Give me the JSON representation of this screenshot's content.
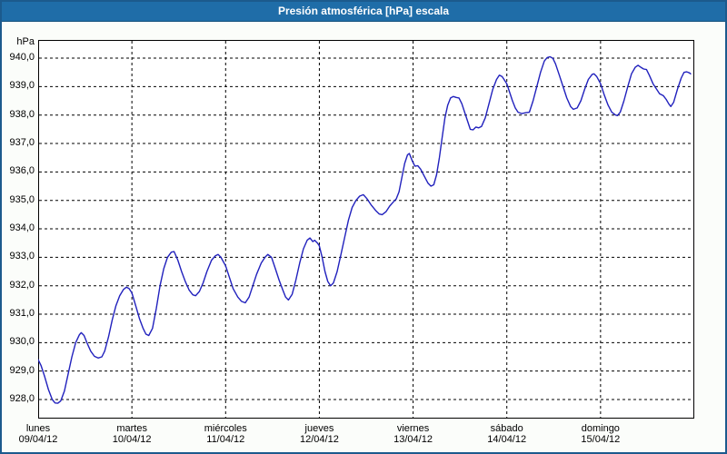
{
  "title": "Presión atmosférica [hPa] escala",
  "colors": {
    "titlebar": "#1f6da8",
    "frame": "#1c5a8d",
    "content_bg": "#fbfdfa",
    "plot_bg": "#ffffff",
    "plot_border": "#000000",
    "grid": "#000000",
    "line": "#2121bd",
    "title_text": "#ffffff",
    "label_text": "#000000"
  },
  "chart_data": {
    "type": "line",
    "title": "Presión atmosférica [hPa] escala",
    "ylabel": "hPa",
    "xlabel": "",
    "grid": "dashed",
    "legend": "none",
    "y_ticks": [
      940,
      939,
      938,
      937,
      936,
      935,
      934,
      933,
      932,
      931,
      930,
      929,
      928
    ],
    "y_tick_labels": [
      "940,0",
      "939,0",
      "938,0",
      "937,0",
      "936,0",
      "935,0",
      "934,0",
      "933,0",
      "932,0",
      "931,0",
      "930,0",
      "929,0",
      "928,0"
    ],
    "ylim": [
      927.33,
      940.64
    ],
    "xlim_days": [
      0,
      7
    ],
    "x_categories": [
      {
        "day": "lunes",
        "date": "09/04/12"
      },
      {
        "day": "martes",
        "date": "10/04/12"
      },
      {
        "day": "miércoles",
        "date": "11/04/12"
      },
      {
        "day": "jueves",
        "date": "12/04/12"
      },
      {
        "day": "viernes",
        "date": "13/04/12"
      },
      {
        "day": "sábado",
        "date": "14/04/12"
      },
      {
        "day": "domingo",
        "date": "15/04/12"
      }
    ],
    "series": [
      {
        "name": "Presión atmosférica [hPa]",
        "color": "#2121bd",
        "points": [
          [
            0.0,
            929.4
          ],
          [
            0.03,
            929.2
          ],
          [
            0.07,
            928.8
          ],
          [
            0.11,
            928.35
          ],
          [
            0.15,
            928.0
          ],
          [
            0.18,
            927.88
          ],
          [
            0.21,
            927.87
          ],
          [
            0.24,
            927.95
          ],
          [
            0.28,
            928.3
          ],
          [
            0.32,
            928.9
          ],
          [
            0.36,
            929.5
          ],
          [
            0.4,
            930.0
          ],
          [
            0.44,
            930.28
          ],
          [
            0.46,
            930.35
          ],
          [
            0.49,
            930.25
          ],
          [
            0.52,
            930.0
          ],
          [
            0.56,
            929.7
          ],
          [
            0.6,
            929.52
          ],
          [
            0.64,
            929.46
          ],
          [
            0.68,
            929.5
          ],
          [
            0.71,
            929.7
          ],
          [
            0.75,
            930.2
          ],
          [
            0.79,
            930.8
          ],
          [
            0.83,
            931.3
          ],
          [
            0.87,
            931.65
          ],
          [
            0.91,
            931.87
          ],
          [
            0.94,
            931.95
          ],
          [
            0.97,
            931.9
          ],
          [
            1.0,
            931.75
          ],
          [
            1.04,
            931.3
          ],
          [
            1.08,
            930.85
          ],
          [
            1.12,
            930.5
          ],
          [
            1.15,
            930.3
          ],
          [
            1.18,
            930.25
          ],
          [
            1.22,
            930.5
          ],
          [
            1.26,
            931.2
          ],
          [
            1.3,
            932.0
          ],
          [
            1.34,
            932.6
          ],
          [
            1.38,
            933.0
          ],
          [
            1.42,
            933.18
          ],
          [
            1.45,
            933.2
          ],
          [
            1.49,
            932.9
          ],
          [
            1.53,
            932.5
          ],
          [
            1.57,
            932.15
          ],
          [
            1.61,
            931.85
          ],
          [
            1.65,
            931.68
          ],
          [
            1.68,
            931.65
          ],
          [
            1.72,
            931.8
          ],
          [
            1.76,
            932.1
          ],
          [
            1.8,
            932.5
          ],
          [
            1.85,
            932.9
          ],
          [
            1.89,
            933.05
          ],
          [
            1.92,
            933.1
          ],
          [
            1.95,
            933.0
          ],
          [
            2.0,
            932.7
          ],
          [
            2.04,
            932.3
          ],
          [
            2.08,
            931.9
          ],
          [
            2.13,
            931.6
          ],
          [
            2.17,
            931.45
          ],
          [
            2.21,
            931.4
          ],
          [
            2.25,
            931.6
          ],
          [
            2.29,
            932.0
          ],
          [
            2.33,
            932.4
          ],
          [
            2.38,
            932.8
          ],
          [
            2.42,
            933.0
          ],
          [
            2.45,
            933.1
          ],
          [
            2.49,
            933.0
          ],
          [
            2.53,
            932.6
          ],
          [
            2.57,
            932.2
          ],
          [
            2.61,
            931.85
          ],
          [
            2.64,
            931.6
          ],
          [
            2.67,
            931.5
          ],
          [
            2.71,
            931.7
          ],
          [
            2.75,
            932.2
          ],
          [
            2.79,
            932.8
          ],
          [
            2.83,
            933.3
          ],
          [
            2.87,
            933.6
          ],
          [
            2.9,
            933.68
          ],
          [
            2.93,
            933.55
          ],
          [
            2.95,
            933.6
          ],
          [
            2.98,
            933.5
          ],
          [
            3.0,
            933.4
          ],
          [
            3.03,
            933.0
          ],
          [
            3.06,
            932.5
          ],
          [
            3.09,
            932.15
          ],
          [
            3.12,
            932.0
          ],
          [
            3.15,
            932.1
          ],
          [
            3.19,
            932.5
          ],
          [
            3.23,
            933.1
          ],
          [
            3.27,
            933.7
          ],
          [
            3.31,
            934.3
          ],
          [
            3.35,
            934.75
          ],
          [
            3.39,
            935.0
          ],
          [
            3.43,
            935.15
          ],
          [
            3.47,
            935.2
          ],
          [
            3.51,
            935.05
          ],
          [
            3.55,
            934.85
          ],
          [
            3.6,
            934.65
          ],
          [
            3.64,
            934.52
          ],
          [
            3.67,
            934.5
          ],
          [
            3.71,
            934.6
          ],
          [
            3.75,
            934.8
          ],
          [
            3.79,
            934.95
          ],
          [
            3.82,
            935.05
          ],
          [
            3.85,
            935.3
          ],
          [
            3.88,
            935.8
          ],
          [
            3.91,
            936.3
          ],
          [
            3.94,
            936.6
          ],
          [
            3.96,
            936.65
          ],
          [
            3.99,
            936.4
          ],
          [
            4.02,
            936.2
          ],
          [
            4.05,
            936.22
          ],
          [
            4.08,
            936.1
          ],
          [
            4.12,
            935.85
          ],
          [
            4.16,
            935.6
          ],
          [
            4.19,
            935.5
          ],
          [
            4.22,
            935.55
          ],
          [
            4.25,
            935.9
          ],
          [
            4.28,
            936.5
          ],
          [
            4.31,
            937.2
          ],
          [
            4.34,
            937.9
          ],
          [
            4.37,
            938.35
          ],
          [
            4.4,
            938.6
          ],
          [
            4.43,
            938.65
          ],
          [
            4.46,
            938.62
          ],
          [
            4.49,
            938.6
          ],
          [
            4.52,
            938.4
          ],
          [
            4.55,
            938.1
          ],
          [
            4.58,
            937.8
          ],
          [
            4.61,
            937.5
          ],
          [
            4.64,
            937.48
          ],
          [
            4.67,
            937.58
          ],
          [
            4.7,
            937.55
          ],
          [
            4.73,
            937.6
          ],
          [
            4.77,
            937.9
          ],
          [
            4.81,
            938.4
          ],
          [
            4.85,
            938.9
          ],
          [
            4.89,
            939.25
          ],
          [
            4.92,
            939.4
          ],
          [
            4.95,
            939.35
          ],
          [
            4.98,
            939.2
          ],
          [
            5.0,
            939.1
          ],
          [
            5.03,
            938.8
          ],
          [
            5.06,
            938.5
          ],
          [
            5.09,
            938.25
          ],
          [
            5.12,
            938.1
          ],
          [
            5.16,
            938.05
          ],
          [
            5.2,
            938.08
          ],
          [
            5.24,
            938.1
          ],
          [
            5.28,
            938.5
          ],
          [
            5.32,
            939.0
          ],
          [
            5.36,
            939.5
          ],
          [
            5.4,
            939.9
          ],
          [
            5.43,
            940.02
          ],
          [
            5.46,
            940.05
          ],
          [
            5.49,
            940.0
          ],
          [
            5.52,
            939.8
          ],
          [
            5.56,
            939.4
          ],
          [
            5.6,
            939.0
          ],
          [
            5.64,
            938.6
          ],
          [
            5.68,
            938.3
          ],
          [
            5.71,
            938.2
          ],
          [
            5.75,
            938.25
          ],
          [
            5.79,
            938.5
          ],
          [
            5.83,
            938.9
          ],
          [
            5.87,
            939.25
          ],
          [
            5.91,
            939.43
          ],
          [
            5.93,
            939.45
          ],
          [
            5.96,
            939.35
          ],
          [
            6.0,
            939.1
          ],
          [
            6.04,
            938.7
          ],
          [
            6.08,
            938.35
          ],
          [
            6.12,
            938.1
          ],
          [
            6.16,
            938.0
          ],
          [
            6.18,
            937.98
          ],
          [
            6.21,
            938.1
          ],
          [
            6.25,
            938.5
          ],
          [
            6.29,
            939.0
          ],
          [
            6.33,
            939.45
          ],
          [
            6.37,
            939.68
          ],
          [
            6.4,
            939.75
          ],
          [
            6.43,
            939.68
          ],
          [
            6.46,
            939.62
          ],
          [
            6.49,
            939.6
          ],
          [
            6.52,
            939.4
          ],
          [
            6.56,
            939.1
          ],
          [
            6.6,
            938.9
          ],
          [
            6.63,
            938.75
          ],
          [
            6.67,
            938.68
          ],
          [
            6.7,
            938.55
          ],
          [
            6.73,
            938.38
          ],
          [
            6.75,
            938.3
          ],
          [
            6.78,
            938.45
          ],
          [
            6.82,
            938.9
          ],
          [
            6.86,
            939.3
          ],
          [
            6.89,
            939.5
          ],
          [
            6.92,
            939.52
          ],
          [
            6.95,
            939.48
          ],
          [
            6.96,
            939.45
          ]
        ]
      }
    ]
  }
}
